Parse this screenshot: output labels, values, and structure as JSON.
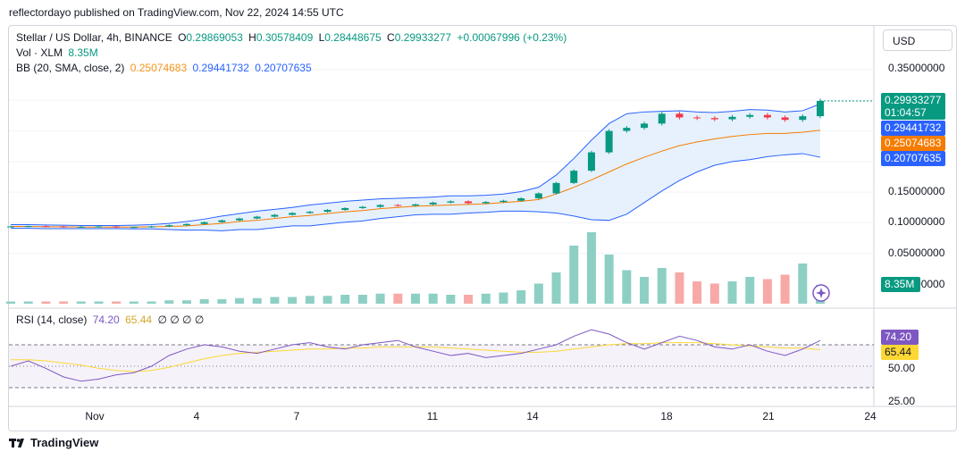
{
  "header": {
    "published": "reflectordayo published on TradingView.com, Nov 22, 2024 14:55 UTC"
  },
  "legend": {
    "symbol": "Stellar / US Dollar, 4h, BINANCE",
    "o_label": "O",
    "o": "0.29869053",
    "h_label": "H",
    "h": "0.30578409",
    "l_label": "L",
    "l": "0.28448675",
    "c_label": "C",
    "c": "0.29933277",
    "change": "+0.00067996 (+0.23%)",
    "vol_label": "Vol · XLM",
    "vol": "8.35M",
    "bb_label": "BB (20, SMA, close, 2)",
    "bb_mid": "0.25074683",
    "bb_upper": "0.29441732",
    "bb_lower": "0.20707635",
    "rsi_label": "RSI (14, close)",
    "rsi": "74.20",
    "rsi_ma": "65.44",
    "rsi_empty": "∅ ∅ ∅ ∅"
  },
  "currency": "USD",
  "tags": {
    "price": "0.29933277",
    "countdown": "01:04:57",
    "bb_upper": "0.29441732",
    "bb_mid": "0.25074683",
    "bb_lower": "0.20707635",
    "vol": "8.35M",
    "rsi": "74.20",
    "rsi_ma": "65.44"
  },
  "colors": {
    "up": "#089981",
    "down": "#f23645",
    "bb_upper": "#2962ff",
    "bb_mid": "#f57c00",
    "rsi": "#7e57c2",
    "rsi_ma": "#fdd835",
    "bb_fill": "#e3effd"
  },
  "footer": {
    "logo": "TradingView"
  },
  "chart_data": {
    "type": "candlestick",
    "price_axis": {
      "ticks": [
        "0.35000000",
        "0.15000000",
        "0.10000000",
        "0.05000000",
        "0.00000000"
      ],
      "ylim": [
        0,
        0.37
      ]
    },
    "rsi_axis": {
      "ticks": [
        "50.00",
        "25.00"
      ],
      "levels": [
        70,
        50,
        30
      ]
    },
    "x_ticks": [
      "Nov",
      "4",
      "7",
      "11",
      "14",
      "18",
      "21",
      "24"
    ],
    "series": [
      {
        "name": "Stellar / US Dollar",
        "close": [
          0.094,
          0.0945,
          0.094,
          0.093,
          0.0935,
          0.094,
          0.0925,
          0.093,
          0.094,
          0.096,
          0.098,
          0.101,
          0.104,
          0.107,
          0.11,
          0.113,
          0.116,
          0.118,
          0.121,
          0.124,
          0.126,
          0.129,
          0.128,
          0.13,
          0.133,
          0.135,
          0.132,
          0.134,
          0.136,
          0.14,
          0.148,
          0.165,
          0.185,
          0.215,
          0.25,
          0.255,
          0.262,
          0.278,
          0.272,
          0.271,
          0.269,
          0.273,
          0.276,
          0.272,
          0.268,
          0.274,
          0.299
        ]
      },
      {
        "name": "BB upper",
        "values": [
          0.097,
          0.097,
          0.0965,
          0.096,
          0.0955,
          0.0955,
          0.0955,
          0.096,
          0.097,
          0.099,
          0.102,
          0.106,
          0.111,
          0.115,
          0.119,
          0.122,
          0.125,
          0.129,
          0.132,
          0.135,
          0.137,
          0.139,
          0.14,
          0.141,
          0.142,
          0.144,
          0.144,
          0.145,
          0.147,
          0.151,
          0.158,
          0.178,
          0.205,
          0.235,
          0.262,
          0.278,
          0.281,
          0.282,
          0.283,
          0.281,
          0.28,
          0.282,
          0.285,
          0.284,
          0.281,
          0.283,
          0.294
        ]
      },
      {
        "name": "BB basis",
        "values": [
          0.094,
          0.094,
          0.0935,
          0.0935,
          0.093,
          0.093,
          0.093,
          0.093,
          0.0935,
          0.094,
          0.095,
          0.097,
          0.099,
          0.102,
          0.104,
          0.107,
          0.11,
          0.112,
          0.115,
          0.118,
          0.12,
          0.123,
          0.125,
          0.127,
          0.128,
          0.129,
          0.13,
          0.131,
          0.133,
          0.135,
          0.138,
          0.147,
          0.158,
          0.17,
          0.183,
          0.196,
          0.207,
          0.217,
          0.226,
          0.232,
          0.237,
          0.241,
          0.244,
          0.246,
          0.246,
          0.248,
          0.251
        ]
      },
      {
        "name": "BB lower",
        "values": [
          0.091,
          0.091,
          0.0905,
          0.0905,
          0.0905,
          0.0905,
          0.0905,
          0.09,
          0.09,
          0.089,
          0.088,
          0.088,
          0.087,
          0.089,
          0.089,
          0.092,
          0.095,
          0.095,
          0.098,
          0.101,
          0.103,
          0.107,
          0.11,
          0.113,
          0.114,
          0.114,
          0.116,
          0.117,
          0.119,
          0.119,
          0.118,
          0.116,
          0.111,
          0.105,
          0.104,
          0.114,
          0.133,
          0.152,
          0.169,
          0.183,
          0.194,
          0.2,
          0.203,
          0.208,
          0.211,
          0.213,
          0.207
        ]
      },
      {
        "name": "RSI",
        "values": [
          50,
          55,
          48,
          40,
          36,
          38,
          42,
          44,
          50,
          60,
          66,
          70,
          68,
          64,
          62,
          66,
          70,
          72,
          68,
          66,
          70,
          72,
          74,
          68,
          64,
          60,
          62,
          58,
          60,
          62,
          66,
          70,
          78,
          84,
          80,
          72,
          66,
          72,
          78,
          74,
          68,
          66,
          70,
          64,
          60,
          66,
          74
        ]
      },
      {
        "name": "RSI MA",
        "values": [
          56,
          56,
          55,
          53,
          51,
          48,
          46,
          45,
          46,
          49,
          53,
          57,
          60,
          62,
          63,
          64,
          65,
          66,
          66,
          67,
          67,
          68,
          68,
          68,
          68,
          67,
          66,
          65,
          64,
          63,
          63,
          64,
          66,
          68,
          70,
          71,
          71,
          72,
          72,
          72,
          71,
          70,
          69,
          68,
          67,
          67,
          65.44
        ]
      },
      {
        "name": "Volume",
        "values": [
          0.1,
          0.1,
          0.1,
          0.1,
          0.1,
          0.1,
          0.1,
          0.1,
          0.1,
          0.15,
          0.15,
          0.2,
          0.2,
          0.25,
          0.25,
          0.3,
          0.3,
          0.35,
          0.35,
          0.4,
          0.4,
          0.45,
          0.45,
          0.45,
          0.45,
          0.4,
          0.4,
          0.45,
          0.5,
          0.6,
          0.9,
          1.4,
          2.6,
          3.2,
          2.2,
          1.5,
          1.2,
          1.6,
          1.4,
          1.0,
          0.9,
          1.0,
          1.2,
          1.1,
          1.3,
          1.8,
          0.84
        ]
      }
    ]
  }
}
